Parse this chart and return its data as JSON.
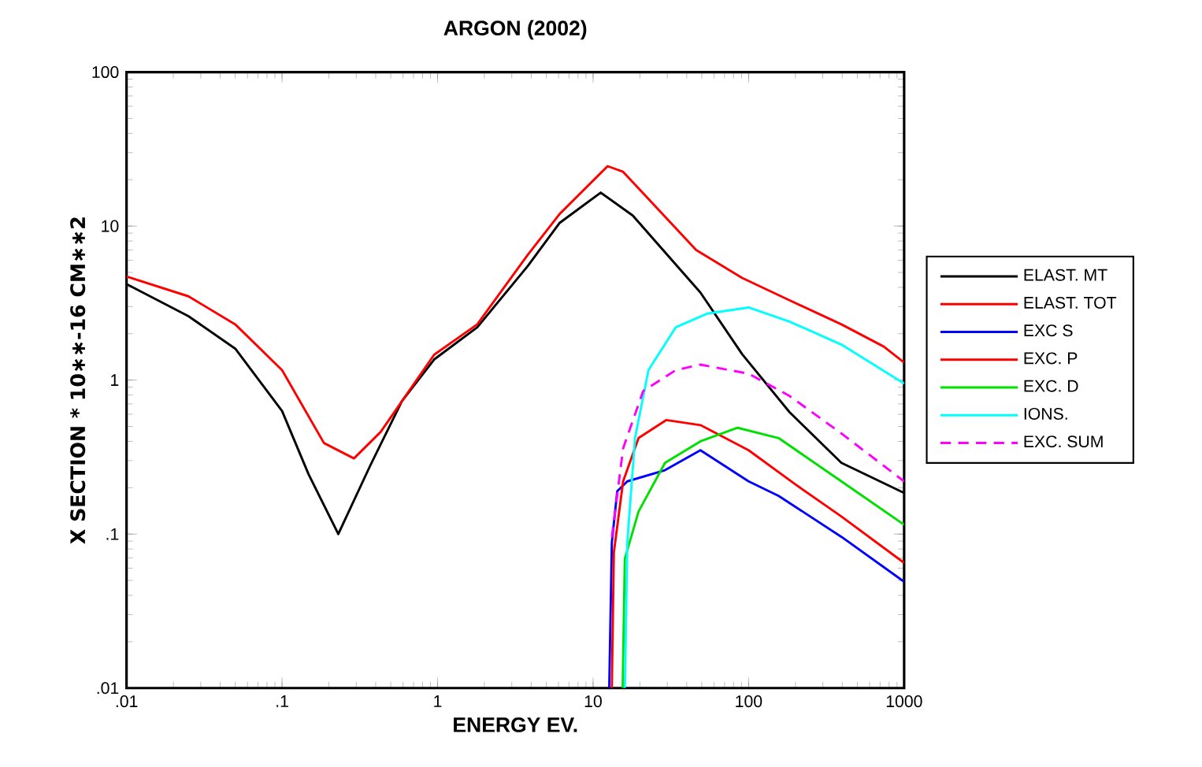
{
  "chart_data": {
    "type": "line",
    "title": "ARGON (2002)",
    "xlabel": "ENERGY EV.",
    "ylabel": "X SECTION * 10∗∗-16 CM∗∗2",
    "log": "xy",
    "xlim": [
      0.01,
      1000
    ],
    "ylim": [
      0.01,
      100
    ],
    "xticks": [
      {
        "value": 0.01,
        "label": ".01"
      },
      {
        "value": 0.1,
        "label": ".1"
      },
      1,
      10,
      100,
      1000
    ],
    "yticks": [
      {
        "value": 0.01,
        "label": ".01"
      },
      {
        "value": 0.1,
        "label": ".1"
      },
      1,
      10,
      100
    ],
    "legend": "right",
    "marker": "none",
    "series": [
      {
        "name": "ELAST. MT",
        "color": "#000000",
        "x": [
          0.01,
          0.025,
          0.05,
          0.1,
          0.148,
          0.23,
          0.37,
          0.59,
          0.95,
          1.8,
          3.8,
          6.1,
          11.2,
          18,
          49,
          91,
          183,
          395,
          1000
        ],
        "values": [
          4.2,
          2.6,
          1.6,
          0.63,
          0.245,
          0.1,
          0.28,
          0.73,
          1.36,
          2.2,
          5.5,
          10.5,
          16.5,
          11.7,
          3.7,
          1.47,
          0.62,
          0.29,
          0.185
        ]
      },
      {
        "name": "ELAST. TOT",
        "color": "#ff0000",
        "x": [
          0.01,
          0.025,
          0.05,
          0.1,
          0.186,
          0.29,
          0.43,
          0.95,
          1.8,
          3.8,
          6.1,
          12.4,
          15.6,
          46,
          91,
          183,
          395,
          740,
          1000
        ],
        "values": [
          4.7,
          3.5,
          2.3,
          1.16,
          0.39,
          0.31,
          0.46,
          1.46,
          2.3,
          6.5,
          12,
          24.5,
          22.5,
          7,
          4.6,
          3.3,
          2.3,
          1.65,
          1.3
        ]
      },
      {
        "name": "EXC S",
        "color": "#0000ff",
        "x": [
          12.7,
          13.2,
          14.3,
          16.6,
          29,
          49,
          100,
          156,
          395,
          1000
        ],
        "values": [
          0.01,
          0.088,
          0.19,
          0.22,
          0.26,
          0.35,
          0.22,
          0.177,
          0.096,
          0.049
        ]
      },
      {
        "name": "EXC. P",
        "color": "#ff0000",
        "x": [
          13.2,
          13.6,
          15.6,
          19.6,
          29.5,
          49,
          100,
          200,
          395,
          1000
        ],
        "values": [
          0.01,
          0.076,
          0.22,
          0.42,
          0.55,
          0.51,
          0.35,
          0.21,
          0.13,
          0.065
        ]
      },
      {
        "name": "EXC. D",
        "color": "#00e000",
        "x": [
          15.5,
          16,
          19.6,
          29,
          49,
          85,
          156,
          395,
          1000
        ],
        "values": [
          0.01,
          0.069,
          0.14,
          0.29,
          0.4,
          0.49,
          0.42,
          0.22,
          0.115
        ]
      },
      {
        "name": "IONS.",
        "color": "#00ffff",
        "x": [
          16,
          16.6,
          18.6,
          22.7,
          34,
          54,
          100,
          183,
          395,
          1000
        ],
        "values": [
          0.01,
          0.088,
          0.42,
          1.16,
          2.2,
          2.7,
          2.96,
          2.4,
          1.7,
          0.95
        ]
      },
      {
        "name": "EXC. SUM",
        "color": "#ff00ff",
        "line_style": "dashed",
        "x": [
          13.2,
          15.6,
          21,
          34,
          49,
          100,
          183,
          395,
          1000
        ],
        "values": [
          0.095,
          0.36,
          0.85,
          1.16,
          1.26,
          1.1,
          0.79,
          0.45,
          0.22
        ]
      }
    ]
  }
}
